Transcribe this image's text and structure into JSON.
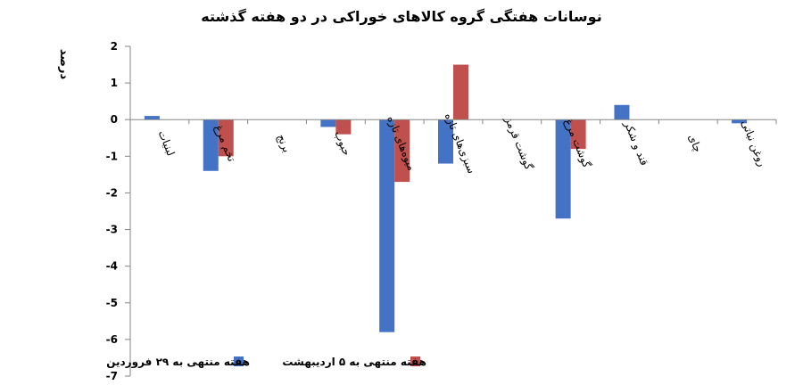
{
  "chart_data": {
    "type": "bar",
    "title": "نوسانات هفتگی گروه کالاهای خوراکی در دو هفته گذشته",
    "ylabel": "درصد",
    "xlabel": "",
    "ylim": [
      -7,
      2
    ],
    "yticks": [
      {
        "value": 2,
        "label": "2"
      },
      {
        "value": 1,
        "label": "1"
      },
      {
        "value": 0,
        "label": "0"
      },
      {
        "value": -1,
        "label": "-1"
      },
      {
        "value": -2,
        "label": "-2"
      },
      {
        "value": -3,
        "label": "-3"
      },
      {
        "value": -4,
        "label": "-4"
      },
      {
        "value": -5,
        "label": "-5"
      },
      {
        "value": -6,
        "label": "-6"
      },
      {
        "value": -7,
        "label": "-7"
      }
    ],
    "categories": [
      "لبنیات",
      "تخم مرغ",
      "برنج",
      "حبوب",
      "میوه‌های تازه",
      "سبزی‌های تازه",
      "گوشت قرمز",
      "گوشت مرغ",
      "قند و شکر",
      "چای",
      "روغن نباتی"
    ],
    "series": [
      {
        "name": "هفته منتهی به ۲۹ فروردین",
        "color": "#4472C4",
        "values": [
          0.1,
          -1.4,
          0,
          -0.2,
          -5.8,
          -1.2,
          0,
          -2.7,
          0.4,
          0,
          -0.1
        ]
      },
      {
        "name": "هفته منتهی به ۵ اردیبهشت",
        "color": "#C0504D",
        "values": [
          0,
          -1.0,
          0,
          -0.4,
          -1.7,
          1.5,
          0,
          -0.8,
          0,
          0,
          0
        ]
      }
    ],
    "legend": "bottom-center",
    "grid": false
  }
}
